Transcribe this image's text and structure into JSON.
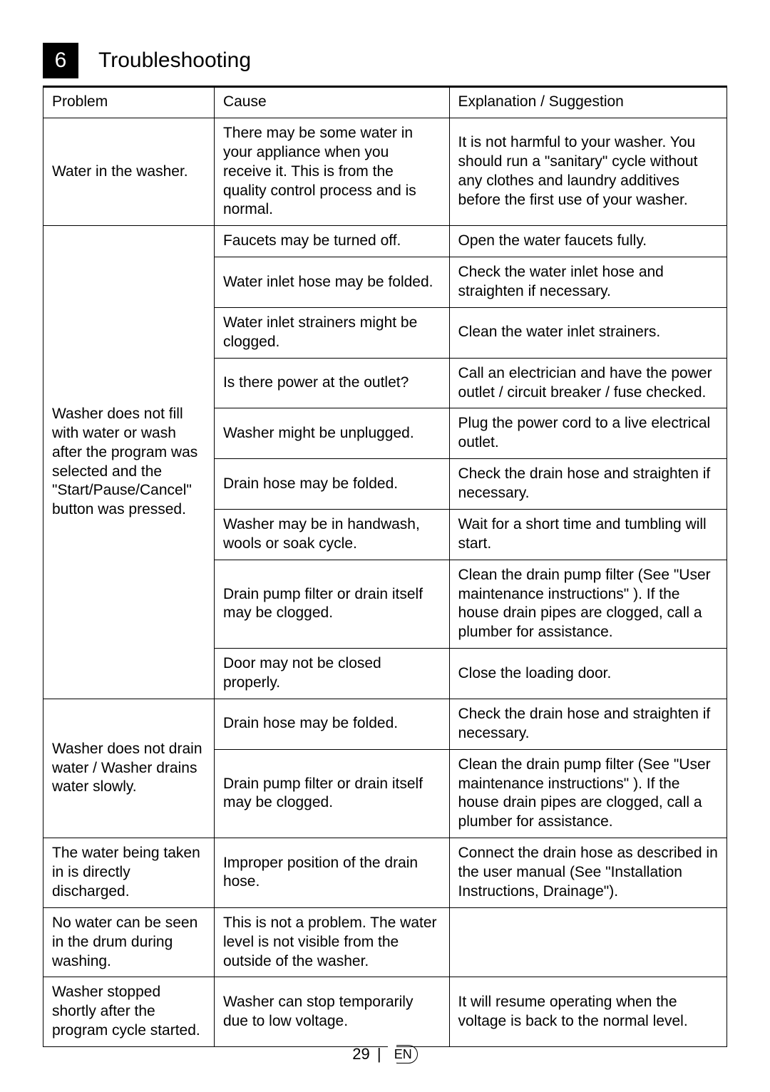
{
  "section": {
    "number": "6",
    "title": "Troubleshooting"
  },
  "table": {
    "headers": {
      "problem": "Problem",
      "cause": "Cause",
      "suggestion": "Explanation / Suggestion"
    },
    "groups": [
      {
        "problem": "Water in the washer.",
        "rows": [
          {
            "cause": "There may be some water in your appliance when you receive it. This is from the quality control process and is normal.",
            "suggestion": "It is not harmful to your washer. You should run a \"sanitary\" cycle without any clothes and laundry additives before the first use of your washer."
          }
        ]
      },
      {
        "problem": "Washer does not fill with water or wash after the program was selected and the \"Start/Pause/Cancel\" button was pressed.",
        "rows": [
          {
            "cause": "Faucets may be turned off.",
            "suggestion": "Open the water faucets fully."
          },
          {
            "cause": "Water inlet hose may be folded.",
            "suggestion": "Check the water inlet hose and straighten if necessary."
          },
          {
            "cause": "Water inlet strainers might be clogged.",
            "suggestion": "Clean the water inlet strainers."
          },
          {
            "cause": "Is there power at the outlet?",
            "suggestion": "Call an electrician and have the power outlet / circuit breaker / fuse checked."
          },
          {
            "cause": "Washer might be unplugged.",
            "suggestion": "Plug the power cord to a live electrical outlet."
          },
          {
            "cause": "Drain hose may be folded.",
            "suggestion": "Check the drain hose and straighten if necessary."
          },
          {
            "cause": "Washer may be in handwash, wools or soak cycle.",
            "suggestion": "Wait for a short time and tumbling will start."
          },
          {
            "cause": "Drain pump filter or drain itself may be clogged.",
            "suggestion": "Clean the drain pump filter (See \"User maintenance instructions\" ). If the house drain pipes are clogged, call a plumber for assistance."
          },
          {
            "cause": "Door may not be closed properly.",
            "suggestion": "Close the loading door."
          }
        ]
      },
      {
        "problem": "Washer does not drain water / Washer drains water slowly.",
        "rows": [
          {
            "cause": "Drain hose may be folded.",
            "suggestion": "Check the drain hose and straighten if necessary."
          },
          {
            "cause": "Drain pump filter or drain itself may be clogged.",
            "suggestion": "Clean the drain pump filter (See \"User maintenance instructions\" ). If the house drain pipes are clogged, call a plumber for assistance."
          }
        ]
      },
      {
        "problem": "The water being taken in is directly discharged.",
        "rows": [
          {
            "cause": "Improper position of the drain hose.",
            "suggestion": "Connect the drain hose as described in the user manual (See \"Installation Instructions, Drainage\")."
          }
        ]
      },
      {
        "problem": "No water can be seen in the drum during washing.",
        "rows": [
          {
            "cause": "This is not a problem. The water level is not visible from the outside of the washer.",
            "suggestion": ""
          }
        ]
      },
      {
        "problem": "Washer stopped shortly after the program cycle started.",
        "rows": [
          {
            "cause": "Washer can stop temporarily due to low voltage.",
            "suggestion": "It will resume operating when the voltage is back to the normal level."
          }
        ]
      }
    ]
  },
  "footer": {
    "page_number": "29",
    "lang": "EN"
  }
}
